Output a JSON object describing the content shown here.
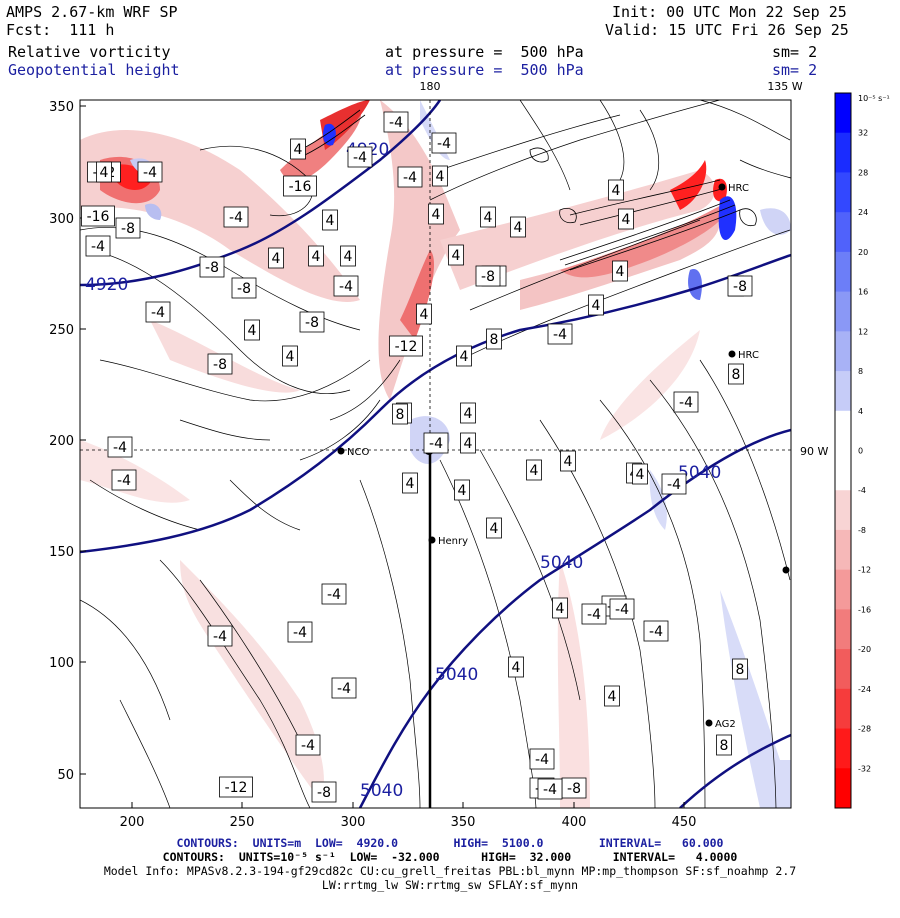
{
  "header": {
    "model": "AMPS 2.67-km WRF SP",
    "forecast": "Fcst:  111 h",
    "init": "Init: 00 UTC Mon 22 Sep 25",
    "valid": "Valid: 15 UTC Fri 26 Sep 25",
    "field1": "Relative vorticity",
    "field2": "Geopotential height",
    "pressure1": "at pressure =  500 hPa",
    "pressure2": "at pressure =  500 hPa",
    "sm1": "sm= 2",
    "sm2": "sm= 2"
  },
  "map": {
    "top_label_180": "180",
    "top_label_135w": "135 W",
    "right_label_90w": "90 W",
    "x_ticks": [
      "200",
      "250",
      "300",
      "350",
      "400",
      "450"
    ],
    "y_ticks": [
      "350",
      "300",
      "250",
      "200",
      "150",
      "100",
      "50"
    ],
    "stations": [
      {
        "name": "Henry"
      },
      {
        "name": "NCO"
      },
      {
        "name": "HRC"
      },
      {
        "name": "AG2"
      },
      {
        "name": "HRC"
      }
    ],
    "height_labels": [
      "4920",
      "4920",
      "5040",
      "5040",
      "5040",
      "5040"
    ],
    "vort_labels": [
      "-12",
      "-4",
      "-16",
      "-8",
      "-16",
      "-4",
      "-8",
      "-8",
      "-8",
      "-8",
      "-4",
      "-4",
      "4",
      "4",
      "4",
      "4",
      "-4",
      "4",
      "4",
      "-4",
      "-12",
      "4",
      "8",
      "-4",
      "-4",
      "-4",
      "-4",
      "4",
      "4",
      "4",
      "4",
      "-4",
      "4",
      "-4",
      "4",
      "4",
      "4",
      "4",
      "4",
      "4",
      "4",
      "-4",
      "-4",
      "-4",
      "-4",
      "-4",
      "-4",
      "-4",
      "4",
      "4",
      "4",
      "4",
      "4",
      "4",
      "8",
      "8",
      "8",
      "8",
      "-8",
      "-8",
      "-8",
      "4",
      "-12",
      "-8",
      "-4",
      "-4",
      "4",
      "-8",
      "8",
      "-4",
      "-4",
      "4",
      "-4",
      "4",
      "4",
      "-4",
      "-4",
      "-4",
      "4",
      "4"
    ],
    "colors": {
      "height_contour": "#101080",
      "neg_strong": "#ff0000",
      "neg_light": "#f8d8d8",
      "pos_strong": "#0000ff",
      "pos_light": "#d8dcf8"
    }
  },
  "colorbar": {
    "unit": "10⁻⁵ s⁻¹",
    "ticks": [
      "32",
      "28",
      "24",
      "20",
      "16",
      "12",
      "8",
      "4",
      "0",
      "-4",
      "-8",
      "-12",
      "-16",
      "-20",
      "-24",
      "-28",
      "-32"
    ]
  },
  "footer": {
    "line1": "CONTOURS:  UNITS=m  LOW=  4920.0        HIGH=  5100.0        INTERVAL=   60.000",
    "line2": "CONTOURS:  UNITS=10⁻⁵ s⁻¹  LOW=  -32.000      HIGH=  32.000      INTERVAL=   4.0000",
    "line3": "Model Info: MPASv8.2.3-194-gf29cd82c CU:cu_grell_freitas PBL:bl_mynn MP:mp_thompson SF:sf_noahmp 2.7",
    "line4": "LW:rrtmg_lw SW:rrtmg_sw SFLAY:sf_mynn"
  }
}
